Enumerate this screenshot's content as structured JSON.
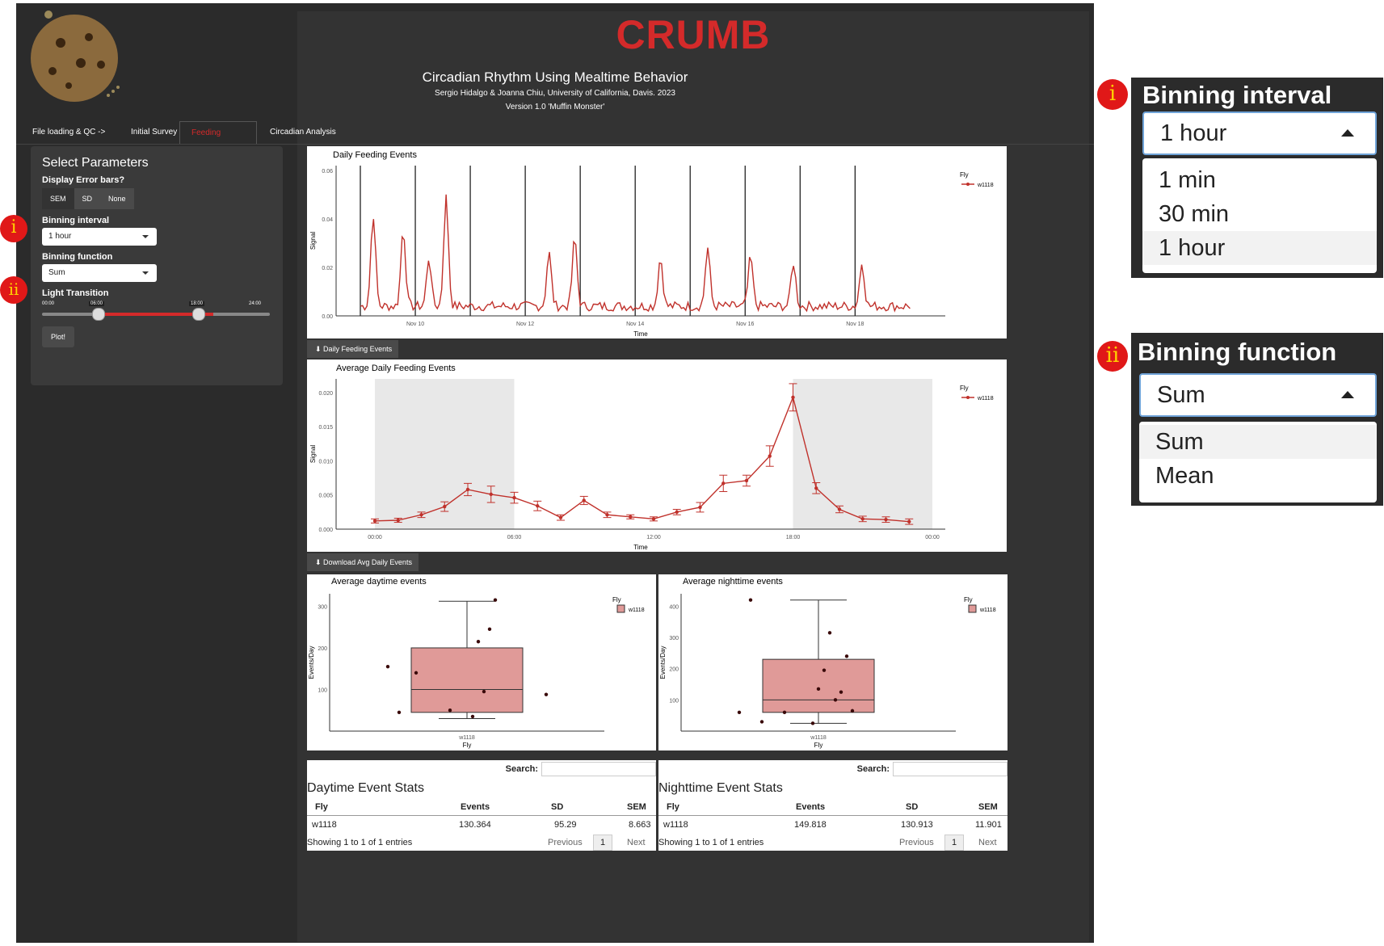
{
  "app": {
    "title": "CRUMB",
    "subtitle": "Circadian Rhythm Using Mealtime Behavior",
    "authors": "Sergio Hidalgo & Joanna Chiu, University of California, Davis. 2023",
    "version": "Version 1.0 'Muffin Monster'"
  },
  "tabs": [
    {
      "label": "File loading & QC ->",
      "active": false
    },
    {
      "label": "Initial Survey ->",
      "active": false
    },
    {
      "label": "Feeding Analysis ->",
      "active": true
    },
    {
      "label": "Circadian Analysis",
      "active": false
    }
  ],
  "sidebar": {
    "title": "Select Parameters",
    "error_bars_label": "Display Error bars?",
    "error_bar_options": [
      "SEM",
      "SD",
      "None"
    ],
    "binning_interval_label": "Binning interval",
    "binning_interval_value": "1 hour",
    "binning_function_label": "Binning function",
    "binning_function_value": "Sum",
    "light_transition_label": "Light Transition",
    "slider_ticks": [
      "00:00",
      "06:00",
      "18:00",
      "24:00"
    ],
    "plot_button": "Plot!"
  },
  "downloads": {
    "daily": "Daily Feeding Events",
    "avg": "Download Avg Daily Events"
  },
  "chart_data": [
    {
      "type": "line",
      "title": "Daily Feeding Events",
      "xlabel": "Time",
      "ylabel": "Signal",
      "x_ticks": [
        "Nov 10",
        "Nov 12",
        "Nov 14",
        "Nov 16",
        "Nov 18"
      ],
      "y_ticks": [
        "0.00",
        "0.02",
        "0.04",
        "0.06"
      ],
      "ylim": [
        0,
        0.062
      ],
      "legend_title": "Fly",
      "legend": [
        "w1118"
      ],
      "series": [
        {
          "name": "w1118",
          "color": "#c0312b",
          "peaks": [
            [
              0.3,
              0.038
            ],
            [
              1.0,
              0.032
            ],
            [
              1.6,
              0.02
            ],
            [
              2.0,
              0.045
            ],
            [
              4.4,
              0.022
            ],
            [
              5.0,
              0.028
            ],
            [
              7.0,
              0.02
            ],
            [
              8.1,
              0.024
            ],
            [
              9.1,
              0.02
            ],
            [
              10.1,
              0.018
            ],
            [
              11.7,
              0.018
            ],
            [
              13.0,
              0.025
            ]
          ]
        }
      ]
    },
    {
      "type": "line",
      "title": "Average Daily Feeding Events",
      "xlabel": "Time",
      "ylabel": "Signal",
      "x_ticks": [
        "00:00",
        "06:00",
        "12:00",
        "18:00",
        "00:00"
      ],
      "y_ticks": [
        "0.000",
        "0.005",
        "0.010",
        "0.015",
        "0.020"
      ],
      "ylim": [
        0,
        0.022
      ],
      "legend_title": "Fly",
      "legend": [
        "w1118"
      ],
      "shaded_hours": [
        [
          0,
          6
        ],
        [
          18,
          24
        ]
      ],
      "series": [
        {
          "name": "w1118",
          "color": "#c0312b",
          "x": [
            0,
            1,
            2,
            3,
            4,
            5,
            6,
            7,
            8,
            9,
            10,
            11,
            12,
            13,
            14,
            15,
            16,
            17,
            18,
            19,
            20,
            21,
            22,
            23
          ],
          "y": [
            0.0012,
            0.0013,
            0.0021,
            0.0033,
            0.0058,
            0.0051,
            0.0046,
            0.0034,
            0.0017,
            0.0042,
            0.0021,
            0.0018,
            0.0015,
            0.0025,
            0.0032,
            0.0067,
            0.0071,
            0.0107,
            0.0193,
            0.006,
            0.0029,
            0.0015,
            0.0014,
            0.0011
          ],
          "err": [
            0.0003,
            0.0003,
            0.0004,
            0.0007,
            0.0009,
            0.0012,
            0.0008,
            0.0007,
            0.0004,
            0.0006,
            0.0004,
            0.0003,
            0.0003,
            0.0004,
            0.0007,
            0.0012,
            0.0008,
            0.0015,
            0.002,
            0.0008,
            0.0005,
            0.0004,
            0.0004,
            0.0004
          ]
        }
      ]
    },
    {
      "type": "box",
      "title": "Average daytime events",
      "xlabel": "Fly",
      "ylabel": "Events/Day",
      "categories": [
        "w1118"
      ],
      "y_ticks": [
        "100",
        "200",
        "300"
      ],
      "ylim": [
        0,
        330
      ],
      "legend_title": "Fly",
      "legend": [
        "w1118"
      ],
      "box": {
        "q1": 45,
        "median": 100,
        "q3": 200,
        "min": 30,
        "max": 312
      },
      "points": [
        [
          -0.7,
          155
        ],
        [
          -0.6,
          45
        ],
        [
          -0.45,
          140
        ],
        [
          -0.15,
          50
        ],
        [
          0.05,
          35
        ],
        [
          0.1,
          215
        ],
        [
          0.15,
          95
        ],
        [
          0.2,
          245
        ],
        [
          0.25,
          315
        ],
        [
          0.7,
          88
        ]
      ]
    },
    {
      "type": "box",
      "title": "Average nighttime events",
      "xlabel": "Fly",
      "ylabel": "Events/Day",
      "categories": [
        "w1118"
      ],
      "y_ticks": [
        "100",
        "200",
        "300",
        "400"
      ],
      "ylim": [
        0,
        440
      ],
      "legend_title": "Fly",
      "legend": [
        "w1118"
      ],
      "box": {
        "q1": 60,
        "median": 100,
        "q3": 230,
        "min": 25,
        "max": 420
      },
      "points": [
        [
          -0.7,
          60
        ],
        [
          -0.6,
          420
        ],
        [
          -0.5,
          30
        ],
        [
          -0.3,
          60
        ],
        [
          0.05,
          195
        ],
        [
          0.1,
          315
        ],
        [
          0.15,
          100
        ],
        [
          0.2,
          125
        ],
        [
          0.25,
          240
        ],
        [
          0.3,
          65
        ],
        [
          -0.05,
          25
        ],
        [
          0.0,
          135
        ]
      ]
    }
  ],
  "tables": [
    {
      "title": "Daytime Event Stats",
      "search_label": "Search:",
      "columns": [
        "Fly",
        "Events",
        "SD",
        "SEM"
      ],
      "rows": [
        [
          "w1118",
          "130.364",
          "95.29",
          "8.663"
        ]
      ],
      "info": "Showing 1 to 1 of 1 entries",
      "prev": "Previous",
      "page": "1",
      "next": "Next"
    },
    {
      "title": "Nighttime Event Stats",
      "search_label": "Search:",
      "columns": [
        "Fly",
        "Events",
        "SD",
        "SEM"
      ],
      "rows": [
        [
          "w1118",
          "149.818",
          "130.913",
          "11.901"
        ]
      ],
      "info": "Showing 1 to 1 of 1 entries",
      "prev": "Previous",
      "page": "1",
      "next": "Next"
    }
  ],
  "callouts": [
    {
      "marker": "i",
      "label": "Binning interval",
      "value": "1 hour",
      "options": [
        "1 min",
        "30 min",
        "1 hour"
      ],
      "highlighted": "1 hour"
    },
    {
      "marker": "ii",
      "label": "Binning function",
      "value": "Sum",
      "options": [
        "Sum",
        "Mean"
      ],
      "highlighted": "Sum"
    }
  ],
  "colors": {
    "accent": "#d42a2a",
    "series": "#c0312b",
    "box_fill": "#e09a98",
    "background": "#2b2b2b"
  }
}
